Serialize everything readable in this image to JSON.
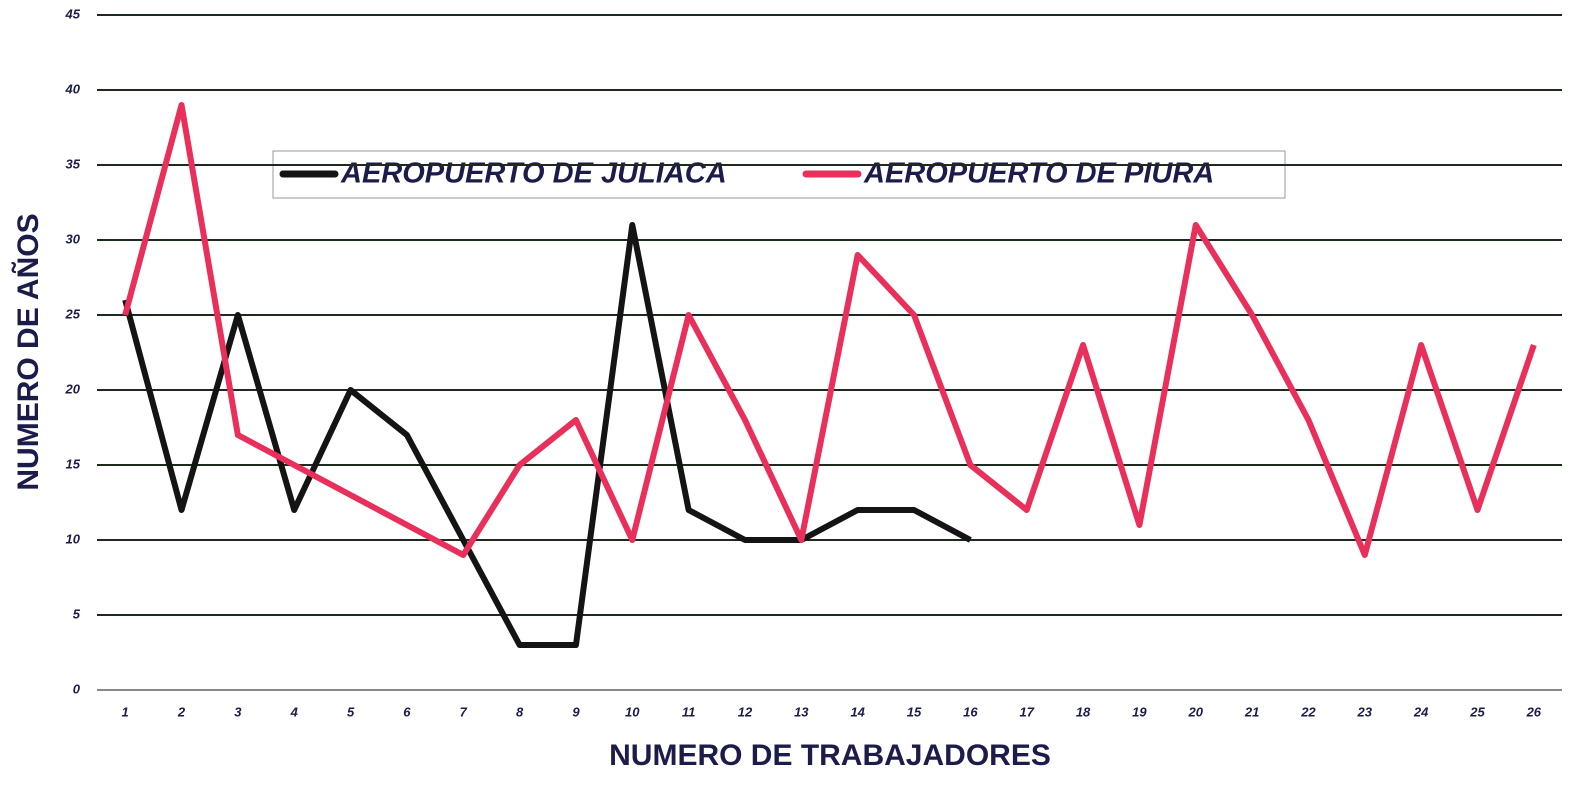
{
  "chart_data": {
    "type": "line",
    "xlabel": "NUMERO DE TRABAJADORES",
    "ylabel": "NUMERO DE AÑOS",
    "categories": [
      "1",
      "2",
      "3",
      "4",
      "5",
      "6",
      "7",
      "8",
      "9",
      "10",
      "11",
      "12",
      "13",
      "14",
      "15",
      "16",
      "17",
      "18",
      "19",
      "20",
      "21",
      "22",
      "23",
      "24",
      "25",
      "26"
    ],
    "series": [
      {
        "name": "AEROPUERTO DE JULIACA",
        "color": "#141414",
        "values": [
          26,
          12,
          25,
          12,
          20,
          17,
          10,
          3,
          3,
          31,
          12,
          10,
          10,
          12,
          12,
          10,
          null,
          null,
          null,
          null,
          null,
          null,
          null,
          null,
          null,
          null
        ]
      },
      {
        "name": "AEROPUERTO DE PIURA",
        "color": "#e8305a",
        "values": [
          25,
          39,
          17,
          15,
          13,
          11,
          9,
          15,
          18,
          10,
          25,
          18,
          10,
          29,
          25,
          15,
          12,
          23,
          11,
          31,
          25,
          18,
          9,
          23,
          12,
          23
        ]
      }
    ],
    "ylim": [
      0,
      45
    ],
    "yticks": [
      0,
      5,
      10,
      15,
      20,
      25,
      30,
      35,
      40,
      45
    ],
    "grid": true,
    "legend": "top"
  }
}
